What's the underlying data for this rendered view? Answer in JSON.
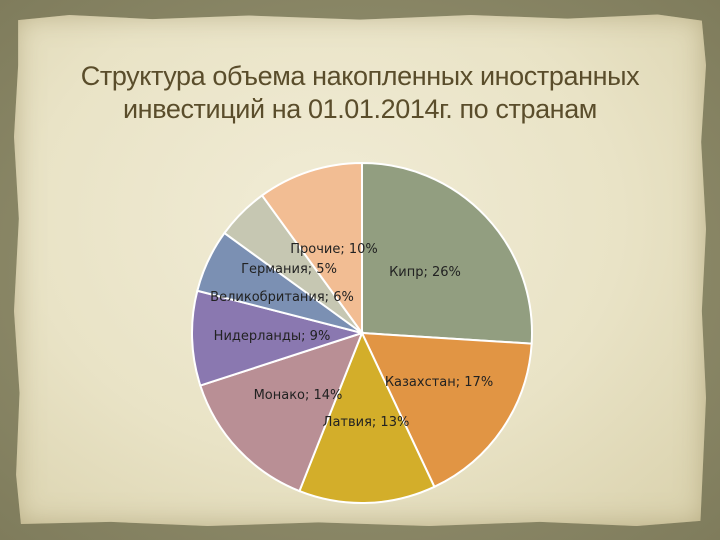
{
  "slide": {
    "title_line1": "Структура объема накопленных иностранных",
    "title_line2": "инвестиций на 01.01.2014г. по странам"
  },
  "chart_data": {
    "type": "pie",
    "unit": "%",
    "slices": [
      {
        "name": "Кипр",
        "value": 26,
        "label": "Кипр; 26%",
        "color": "#929e80"
      },
      {
        "name": "Казахстан",
        "value": 17,
        "label": "Казахстан; 17%",
        "color": "#e19544"
      },
      {
        "name": "Латвия",
        "value": 13,
        "label": "Латвия; 13%",
        "color": "#d3ae2a"
      },
      {
        "name": "Монако",
        "value": 14,
        "label": "Монако; 14%",
        "color": "#b98f95"
      },
      {
        "name": "Нидерланды",
        "value": 9,
        "label": "Нидерланды; 9%",
        "color": "#8a78b0"
      },
      {
        "name": "Великобритания",
        "value": 6,
        "label": "Великобритания; 6%",
        "color": "#7b90b3"
      },
      {
        "name": "Германия",
        "value": 5,
        "label": "Германия; 5%",
        "color": "#c6c7b2"
      },
      {
        "name": "Прочие",
        "value": 10,
        "label": "Прочие; 10%",
        "color": "#f2bd93"
      }
    ]
  }
}
